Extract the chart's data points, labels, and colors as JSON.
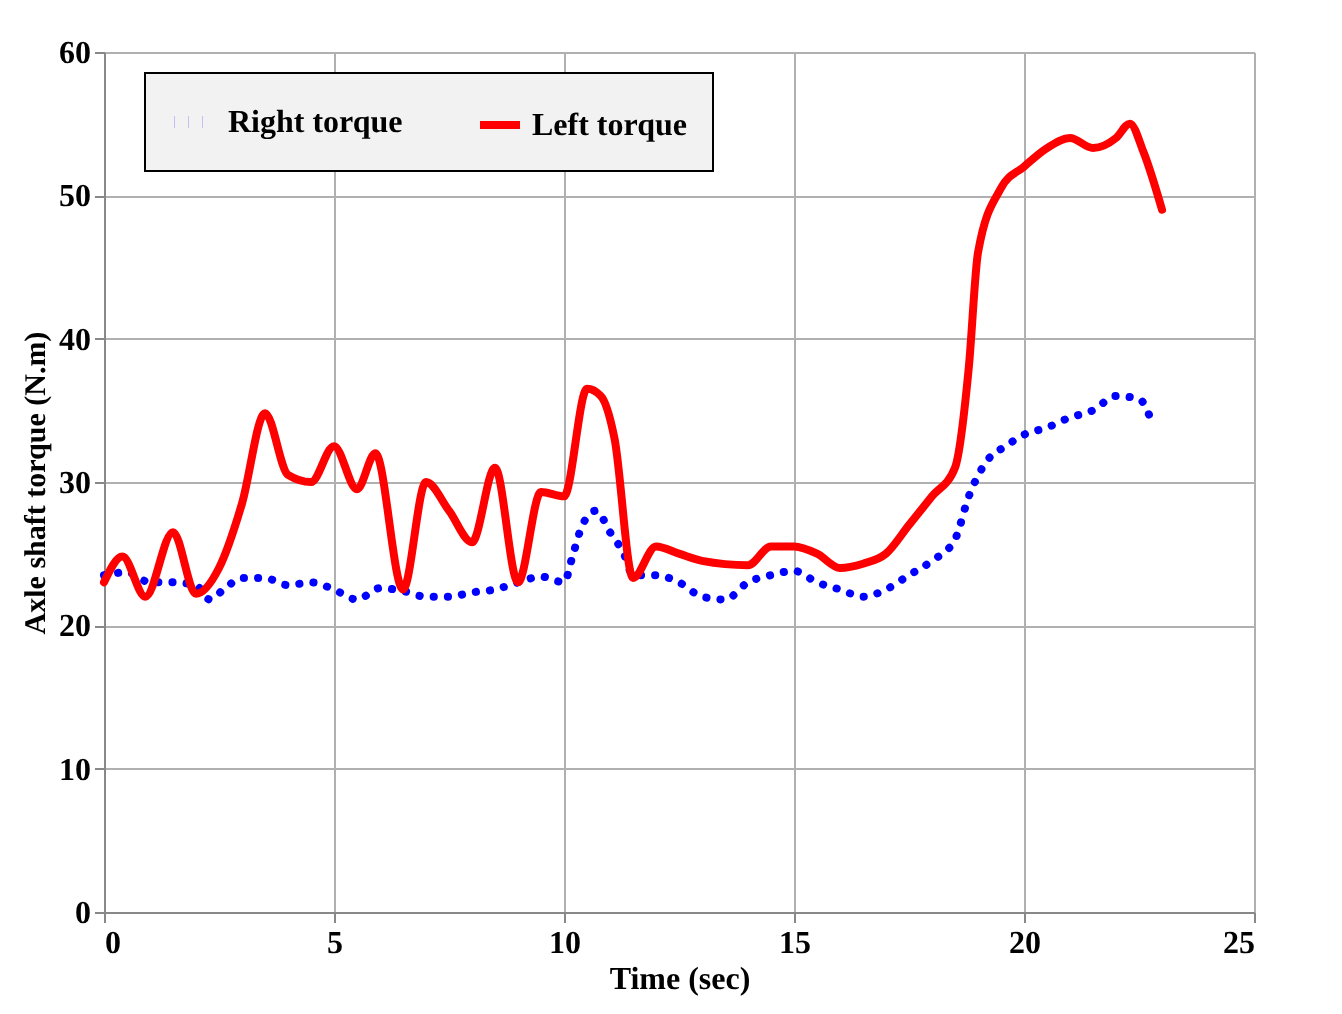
{
  "chart_data": {
    "type": "line",
    "xlabel": "Time (sec)",
    "ylabel": "Axle shaft  torque (N.m)",
    "xlim": [
      0,
      25
    ],
    "xticks": [
      0,
      5,
      10,
      15,
      20,
      25
    ],
    "ylim": [
      0,
      60
    ],
    "yticks": [
      0,
      10,
      20,
      30,
      40,
      50,
      60
    ],
    "grid": true,
    "legend": "top",
    "marker": "none",
    "series": [
      {
        "name": "Right torque",
        "color": "#0000ff",
        "line_style": "dotted",
        "x": [
          0,
          0.5,
          1,
          1.5,
          2,
          2.3,
          2.6,
          3,
          3.5,
          4,
          4.5,
          5,
          5.5,
          6,
          6.5,
          7,
          7.5,
          8,
          8.5,
          9,
          9.5,
          10,
          10.2,
          10.4,
          10.7,
          11,
          11.3,
          11.5,
          12,
          12.5,
          13,
          13.5,
          14,
          14.5,
          15,
          15.5,
          16,
          16.5,
          17,
          17.5,
          18,
          18.5,
          18.8,
          19.2,
          19.6,
          20,
          20.5,
          21,
          21.5,
          22,
          22.5,
          22.8
        ],
        "values": [
          23.5,
          23.7,
          23,
          23,
          22.8,
          21.8,
          22.5,
          23.3,
          23.3,
          22.8,
          23,
          22.5,
          21.8,
          22.6,
          22.4,
          22,
          22,
          22.3,
          22.5,
          23,
          23.4,
          23,
          25,
          27,
          28,
          26.5,
          25,
          23.5,
          23.5,
          23,
          22,
          21.8,
          23,
          23.5,
          23.8,
          23,
          22.5,
          22,
          22.5,
          23.5,
          24.5,
          26,
          29,
          31.5,
          32.5,
          33.3,
          33.8,
          34.5,
          35,
          36,
          35.8,
          34
        ]
      },
      {
        "name": "Left torque",
        "color": "#ff0000",
        "line_style": "solid",
        "x": [
          0,
          0.4,
          0.9,
          1.5,
          2,
          2.5,
          3,
          3.5,
          4,
          4.5,
          5,
          5.5,
          5.9,
          6.5,
          7,
          7.5,
          8,
          8.5,
          9,
          9.5,
          10,
          10.5,
          10.8,
          11.1,
          11.5,
          12,
          12.5,
          13,
          14,
          14.5,
          15,
          15.5,
          16,
          16.5,
          17,
          17.5,
          18,
          18.5,
          18.8,
          19,
          19.5,
          20,
          20.5,
          21,
          21.5,
          22,
          22.3,
          22.6,
          23
        ],
        "values": [
          23,
          24.8,
          22,
          26.5,
          22.2,
          24,
          28.5,
          34.8,
          30.5,
          30,
          32.5,
          29.5,
          32,
          22.5,
          30,
          28,
          25.8,
          31,
          23,
          29.3,
          29,
          36.5,
          36,
          33,
          23.3,
          25.5,
          25,
          24.5,
          24.2,
          25.5,
          25.5,
          25,
          24,
          24.3,
          25,
          27,
          29,
          31,
          38,
          46,
          50.5,
          52,
          53.3,
          54,
          53.3,
          54,
          55,
          53,
          49
        ]
      }
    ]
  }
}
